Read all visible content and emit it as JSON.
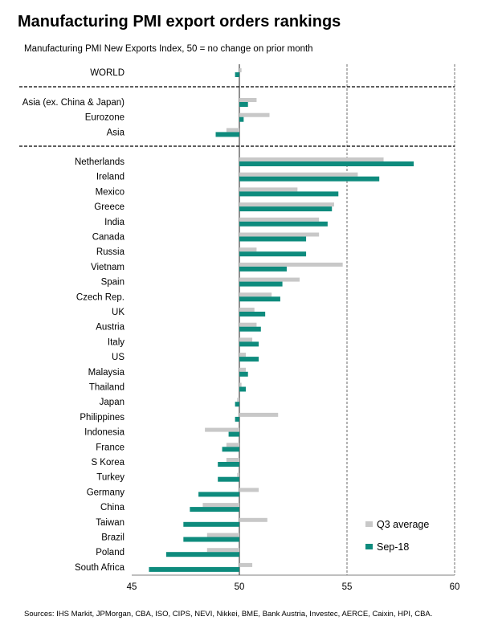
{
  "title": "Manufacturing PMI export orders rankings",
  "subtitle": "Manufacturing PMI New Exports Index, 50 = no change on prior month",
  "source": "Sources: IHS Markit, JPMorgan, CBA, ISO, CIPS, NEVI, Nikkei, BME, Bank Austria, Investec, AERCE, Caixin, HPI, CBA.",
  "colors": {
    "q3": "#c8c8c8",
    "sep": "#0e8b7d",
    "grid": "#444444",
    "separator": "#000000"
  },
  "chart_data": {
    "type": "bar",
    "orientation": "horizontal",
    "xlim": [
      45,
      60
    ],
    "xticks": [
      45,
      50,
      55,
      60
    ],
    "baseline": 50,
    "grid": "vertical dashed at 55 and 60",
    "legend_position": "bottom-right",
    "groups": [
      {
        "categories": [
          "WORLD"
        ]
      },
      {
        "categories": [
          "Asia (ex. China & Japan)",
          "Eurozone",
          "Asia"
        ]
      },
      {
        "categories": [
          "Netherlands",
          "Ireland",
          "Mexico",
          "Greece",
          "India",
          "Canada",
          "Russia",
          "Vietnam",
          "Spain",
          "Czech Rep.",
          "UK",
          "Austria",
          "Italy",
          "US",
          "Malaysia",
          "Thailand",
          "Japan",
          "Philippines",
          "Indonesia",
          "France",
          "S Korea",
          "Turkey",
          "Germany",
          "China",
          "Taiwan",
          "Brazil",
          "Poland",
          "South Africa"
        ]
      }
    ],
    "series": [
      {
        "name": "Q3 average",
        "values": [
          50.1,
          50.8,
          51.4,
          49.4,
          56.7,
          55.5,
          52.7,
          54.4,
          53.7,
          53.7,
          50.8,
          54.8,
          52.8,
          51.5,
          50.7,
          50.8,
          50.6,
          50.3,
          50.3,
          50.1,
          49.9,
          51.8,
          48.4,
          49.4,
          49.4,
          49.9,
          50.9,
          48.3,
          51.3,
          48.5,
          48.5,
          50.6
        ]
      },
      {
        "name": "Sep-18",
        "values": [
          49.8,
          50.4,
          50.2,
          48.9,
          58.1,
          56.5,
          54.6,
          54.3,
          54.1,
          53.1,
          53.1,
          52.2,
          52.0,
          51.9,
          51.2,
          51.0,
          50.9,
          50.9,
          50.4,
          50.3,
          49.8,
          49.8,
          49.5,
          49.2,
          49.0,
          49.0,
          48.1,
          47.7,
          47.4,
          47.4,
          46.6,
          45.8
        ]
      }
    ],
    "legend": [
      "Q3 average",
      "Sep-18"
    ]
  }
}
